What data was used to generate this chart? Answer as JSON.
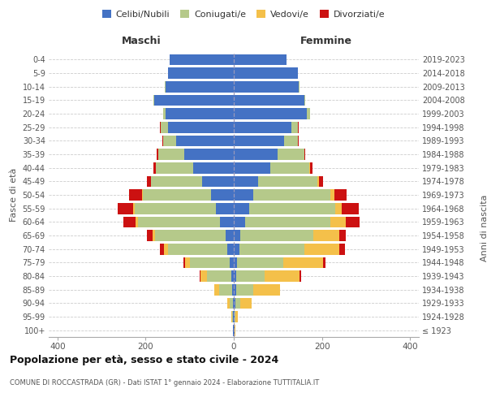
{
  "age_groups": [
    "100+",
    "95-99",
    "90-94",
    "85-89",
    "80-84",
    "75-79",
    "70-74",
    "65-69",
    "60-64",
    "55-59",
    "50-54",
    "45-49",
    "40-44",
    "35-39",
    "30-34",
    "25-29",
    "20-24",
    "15-19",
    "10-14",
    "5-9",
    "0-4"
  ],
  "birth_years": [
    "≤ 1923",
    "1924-1928",
    "1929-1933",
    "1934-1938",
    "1939-1943",
    "1944-1948",
    "1949-1953",
    "1954-1958",
    "1959-1963",
    "1964-1968",
    "1969-1973",
    "1974-1978",
    "1979-1983",
    "1984-1988",
    "1989-1993",
    "1994-1998",
    "1999-2003",
    "2004-2008",
    "2009-2013",
    "2014-2018",
    "2019-2023"
  ],
  "maschi_celibi": [
    1,
    1,
    2,
    4,
    5,
    10,
    15,
    18,
    32,
    40,
    52,
    72,
    92,
    112,
    130,
    150,
    155,
    180,
    155,
    150,
    145
  ],
  "maschi_coniugati": [
    1,
    3,
    8,
    30,
    55,
    90,
    135,
    160,
    185,
    185,
    155,
    115,
    85,
    60,
    30,
    15,
    5,
    2,
    1,
    0,
    0
  ],
  "maschi_vedovi": [
    0,
    1,
    5,
    10,
    15,
    10,
    8,
    7,
    5,
    3,
    2,
    1,
    0,
    0,
    0,
    0,
    0,
    0,
    0,
    0,
    0
  ],
  "maschi_divorziati": [
    0,
    0,
    0,
    0,
    2,
    5,
    10,
    12,
    28,
    35,
    28,
    10,
    5,
    3,
    3,
    2,
    0,
    0,
    0,
    0,
    0
  ],
  "femmine_nubili": [
    1,
    1,
    3,
    5,
    5,
    8,
    12,
    15,
    25,
    35,
    45,
    55,
    82,
    100,
    115,
    130,
    165,
    160,
    148,
    145,
    120
  ],
  "femmine_coniugate": [
    1,
    3,
    12,
    40,
    65,
    105,
    148,
    165,
    195,
    195,
    175,
    135,
    90,
    60,
    30,
    15,
    8,
    3,
    1,
    0,
    0
  ],
  "femmine_vedove": [
    1,
    5,
    25,
    60,
    80,
    90,
    80,
    60,
    35,
    15,
    8,
    3,
    1,
    0,
    0,
    0,
    0,
    0,
    0,
    0,
    0
  ],
  "femmine_divorziate": [
    0,
    0,
    0,
    0,
    3,
    5,
    12,
    15,
    30,
    38,
    28,
    10,
    5,
    3,
    3,
    2,
    1,
    0,
    0,
    0,
    0
  ],
  "colors": {
    "celibi_nubili": "#4472c4",
    "coniugati": "#b5c98a",
    "vedovi": "#f4c04a",
    "divorziati": "#cc1111"
  },
  "title": "Popolazione per età, sesso e stato civile - 2024",
  "subtitle": "COMUNE DI ROCCASTRADA (GR) - Dati ISTAT 1° gennaio 2024 - Elaborazione TUTTITALIA.IT",
  "label_maschi": "Maschi",
  "label_femmine": "Femmine",
  "ylabel_left": "Fasce di età",
  "ylabel_right": "Anni di nascita",
  "legend_labels": [
    "Celibi/Nubili",
    "Coniugati/e",
    "Vedovi/e",
    "Divorziati/e"
  ],
  "xlim": 420,
  "background_color": "#ffffff",
  "grid_color": "#cccccc"
}
